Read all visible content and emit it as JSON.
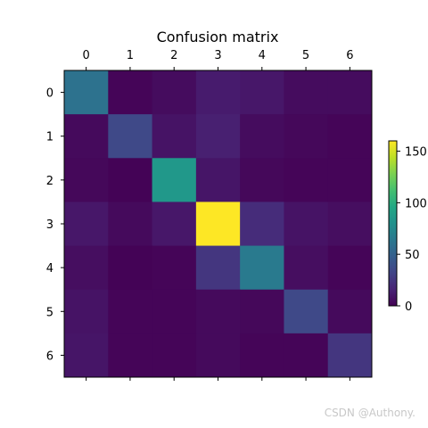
{
  "chart_data": {
    "type": "heatmap",
    "title": "Confusion matrix",
    "x_categories": [
      "0",
      "1",
      "2",
      "3",
      "4",
      "5",
      "6"
    ],
    "y_categories": [
      "0",
      "1",
      "2",
      "3",
      "4",
      "5",
      "6"
    ],
    "x_axis_position": "top",
    "matrix": [
      [
        60,
        2,
        5,
        12,
        10,
        5,
        5
      ],
      [
        4,
        35,
        8,
        14,
        5,
        3,
        2
      ],
      [
        3,
        1,
        85,
        9,
        3,
        2,
        2
      ],
      [
        10,
        4,
        10,
        160,
        20,
        8,
        6
      ],
      [
        6,
        1,
        2,
        25,
        65,
        6,
        2
      ],
      [
        8,
        2,
        2,
        4,
        3,
        35,
        4
      ],
      [
        9,
        2,
        2,
        4,
        2,
        2,
        25
      ]
    ],
    "colormap": "viridis",
    "colorbar": {
      "range": [
        0,
        160
      ],
      "ticks": [
        0,
        50,
        100,
        150
      ],
      "placement": "right"
    },
    "grid": false
  },
  "watermark": "CSDN @Authony."
}
